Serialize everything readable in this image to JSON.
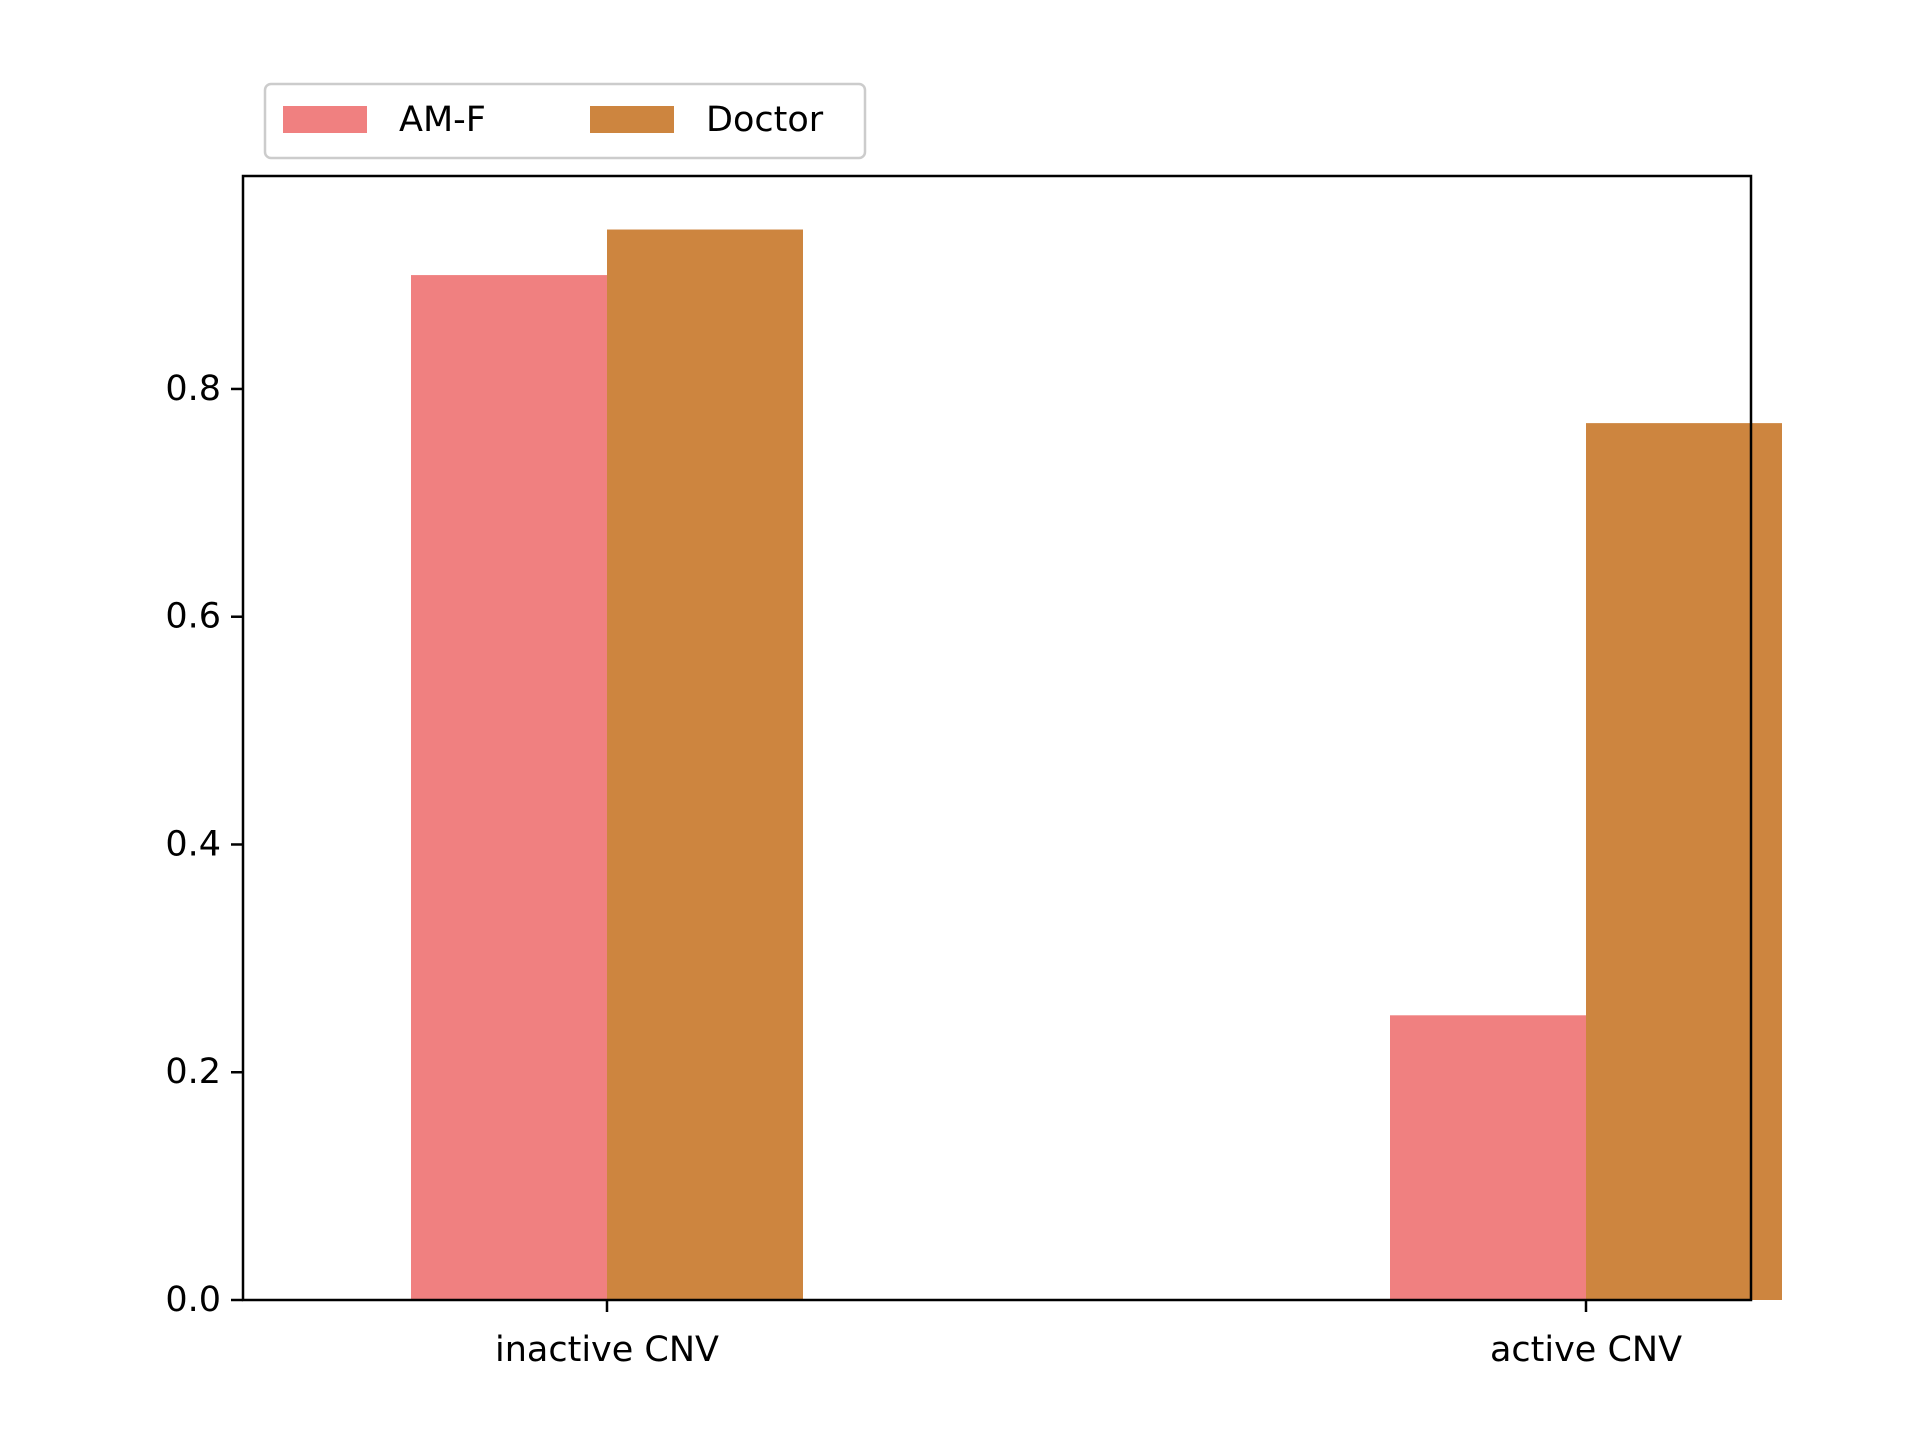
{
  "chart_data": {
    "type": "bar",
    "title": "",
    "xlabel": "",
    "ylabel": "",
    "categories": [
      "inactive CNV",
      "active CNV"
    ],
    "series": [
      {
        "name": "AM-F",
        "values": [
          0.9,
          0.25
        ],
        "color": "#f08080"
      },
      {
        "name": "Doctor",
        "values": [
          0.94,
          0.77
        ],
        "color": "#cd853f"
      }
    ],
    "ylim": [
      0,
      0.987
    ],
    "yticks": [
      0.0,
      0.2,
      0.4,
      0.6,
      0.8
    ],
    "ytick_labels": [
      "0.0",
      "0.2",
      "0.4",
      "0.6",
      "0.8"
    ],
    "grid": false,
    "legend_position": "top-left, above the plot area"
  }
}
